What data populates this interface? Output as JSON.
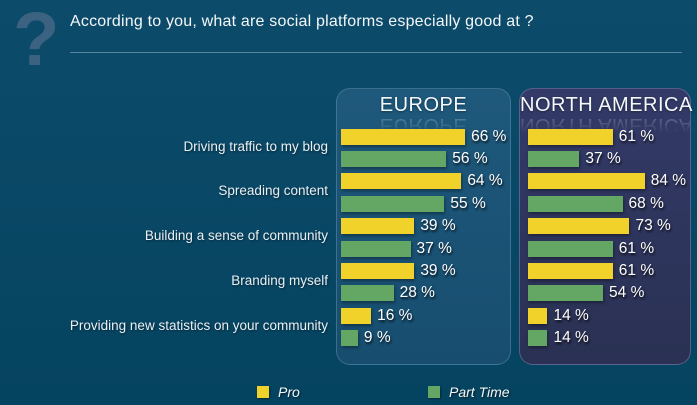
{
  "header": {
    "icon_glyph": "?",
    "title": "According to you, what are social platforms especially good at ?"
  },
  "legend": [
    {
      "label": "Pro",
      "color": "#f0d22b"
    },
    {
      "label": "Part Time",
      "color": "#64a663"
    }
  ],
  "chart_data": {
    "type": "bar",
    "orientation": "horizontal",
    "title": "According to you, what are social platforms especially good at ?",
    "value_suffix": " %",
    "value_range": [
      0,
      100
    ],
    "grid": false,
    "legend_position": "bottom",
    "categories": [
      "Driving traffic to my blog",
      "Spreading content",
      "Building a sense of community",
      "Branding myself",
      "Providing new statistics on your community"
    ],
    "panels": [
      {
        "name": "EUROPE",
        "series": [
          {
            "name": "Pro",
            "values": [
              66,
              64,
              39,
              39,
              16
            ]
          },
          {
            "name": "Part Time",
            "values": [
              56,
              55,
              37,
              28,
              9
            ]
          }
        ]
      },
      {
        "name": "NORTH AMERICA",
        "series": [
          {
            "name": "Pro",
            "values": [
              61,
              84,
              73,
              61,
              14
            ]
          },
          {
            "name": "Part Time",
            "values": [
              37,
              68,
              61,
              54,
              14
            ]
          }
        ]
      }
    ],
    "colors": {
      "pro": "#f0d22b",
      "part_time": "#64a663"
    }
  }
}
